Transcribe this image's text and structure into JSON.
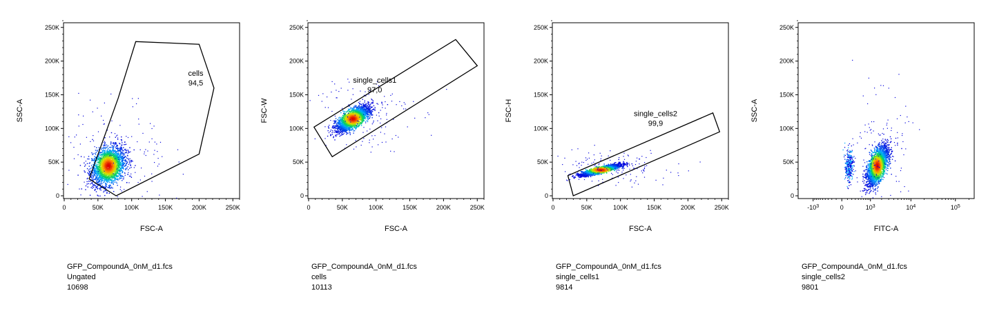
{
  "chart_data": [
    {
      "type": "scatter",
      "xlabel": "FSC-A",
      "ylabel": "SSC-A",
      "x_scale": "linear",
      "y_scale": "linear",
      "xlim": [
        0,
        262144
      ],
      "ylim": [
        0,
        262144
      ],
      "x_ticks": [
        {
          "v": 0,
          "t": "0"
        },
        {
          "v": 50000,
          "t": "50K"
        },
        {
          "v": 100000,
          "t": "100K"
        },
        {
          "v": 150000,
          "t": "150K"
        },
        {
          "v": 200000,
          "t": "200K"
        },
        {
          "v": 250000,
          "t": "250K"
        }
      ],
      "y_ticks": [
        {
          "v": 0,
          "t": "0"
        },
        {
          "v": 50000,
          "t": "50K"
        },
        {
          "v": 100000,
          "t": "100K"
        },
        {
          "v": 150000,
          "t": "150K"
        },
        {
          "v": 200000,
          "t": "200K"
        },
        {
          "v": 250000,
          "t": "250K"
        }
      ],
      "population": {
        "cx": 65000,
        "cy": 45000,
        "sx": 12000,
        "sy": 14000,
        "rho": 0.3
      },
      "gate": {
        "name": "cells",
        "value": "94,5",
        "label_at": [
          195000,
          178000
        ],
        "polygon": [
          [
            37000,
            25000
          ],
          [
            77000,
            0
          ],
          [
            200000,
            62000
          ],
          [
            222000,
            160000
          ],
          [
            200000,
            225000
          ],
          [
            106000,
            229000
          ],
          [
            80000,
            145000
          ]
        ]
      },
      "caption": {
        "file": "GFP_CompoundA_0nM_d1.fcs",
        "gate": "Ungated",
        "count": "10698"
      }
    },
    {
      "type": "scatter",
      "xlabel": "FSC-A",
      "ylabel": "FSC-W",
      "x_scale": "linear",
      "y_scale": "linear",
      "xlim": [
        0,
        262144
      ],
      "ylim": [
        0,
        262144
      ],
      "x_ticks": [
        {
          "v": 0,
          "t": "0"
        },
        {
          "v": 50000,
          "t": "50K"
        },
        {
          "v": 100000,
          "t": "100K"
        },
        {
          "v": 150000,
          "t": "150K"
        },
        {
          "v": 200000,
          "t": "200K"
        },
        {
          "v": 250000,
          "t": "250K"
        }
      ],
      "y_ticks": [
        {
          "v": 0,
          "t": "0"
        },
        {
          "v": 50000,
          "t": "50K"
        },
        {
          "v": 100000,
          "t": "100K"
        },
        {
          "v": 150000,
          "t": "150K"
        },
        {
          "v": 200000,
          "t": "200K"
        },
        {
          "v": 250000,
          "t": "250K"
        }
      ],
      "population": {
        "cx": 65000,
        "cy": 115000,
        "sx": 12000,
        "sy": 9000,
        "rho": 0.7
      },
      "gate": {
        "name": "single_cells1",
        "value": "97,0",
        "label_at": [
          98000,
          168000
        ],
        "polygon": [
          [
            8000,
            102000
          ],
          [
            218000,
            232000
          ],
          [
            250000,
            193000
          ],
          [
            35000,
            58000
          ]
        ]
      },
      "caption": {
        "file": "GFP_CompoundA_0nM_d1.fcs",
        "gate": "cells",
        "count": "10113"
      }
    },
    {
      "type": "scatter",
      "xlabel": "FSC-A",
      "ylabel": "FSC-H",
      "x_scale": "linear",
      "y_scale": "linear",
      "xlim": [
        0,
        262144
      ],
      "ylim": [
        0,
        262144
      ],
      "x_ticks": [
        {
          "v": 0,
          "t": "0"
        },
        {
          "v": 50000,
          "t": "50K"
        },
        {
          "v": 100000,
          "t": "100K"
        },
        {
          "v": 150000,
          "t": "150K"
        },
        {
          "v": 200000,
          "t": "200K"
        },
        {
          "v": 250000,
          "t": "250K"
        }
      ],
      "y_ticks": [
        {
          "v": 0,
          "t": "0"
        },
        {
          "v": 50000,
          "t": "50K"
        },
        {
          "v": 100000,
          "t": "100K"
        },
        {
          "v": 150000,
          "t": "150K"
        },
        {
          "v": 200000,
          "t": "200K"
        },
        {
          "v": 250000,
          "t": "250K"
        }
      ],
      "population": {
        "cx": 70000,
        "cy": 39000,
        "sx": 14000,
        "sy": 4000,
        "rho": 0.85
      },
      "gate": {
        "name": "single_cells2",
        "value": "99,9",
        "label_at": [
          152000,
          118000
        ],
        "polygon": [
          [
            22000,
            30000
          ],
          [
            237000,
            123000
          ],
          [
            247000,
            95000
          ],
          [
            30000,
            0
          ]
        ]
      },
      "caption": {
        "file": "GFP_CompoundA_0nM_d1.fcs",
        "gate": "single_cells1",
        "count": "9814"
      }
    },
    {
      "type": "scatter",
      "xlabel": "FITC-A",
      "ylabel": "SSC-A",
      "x_scale": "biexponential",
      "y_scale": "linear",
      "ylim": [
        0,
        262144
      ],
      "x_ticks": [
        {
          "v": -1000,
          "t": "-10",
          "e": "3"
        },
        {
          "v": 0,
          "t": "0"
        },
        {
          "v": 1000,
          "t": "10",
          "e": "3"
        },
        {
          "v": 10000,
          "t": "10",
          "e": "4"
        },
        {
          "v": 100000,
          "t": "10",
          "e": "5"
        }
      ],
      "y_ticks": [
        {
          "v": 0,
          "t": "0"
        },
        {
          "v": 50000,
          "t": "50K"
        },
        {
          "v": 100000,
          "t": "100K"
        },
        {
          "v": 150000,
          "t": "150K"
        },
        {
          "v": 200000,
          "t": "200K"
        },
        {
          "v": 250000,
          "t": "250K"
        }
      ],
      "population": {
        "cx": 1500,
        "cy": 45000,
        "sx": 0.14,
        "sy": 14000,
        "rho": 0.6
      },
      "caption": {
        "file": "GFP_CompoundA_0nM_d1.fcs",
        "gate": "single_cells2",
        "count": "9801"
      }
    }
  ]
}
